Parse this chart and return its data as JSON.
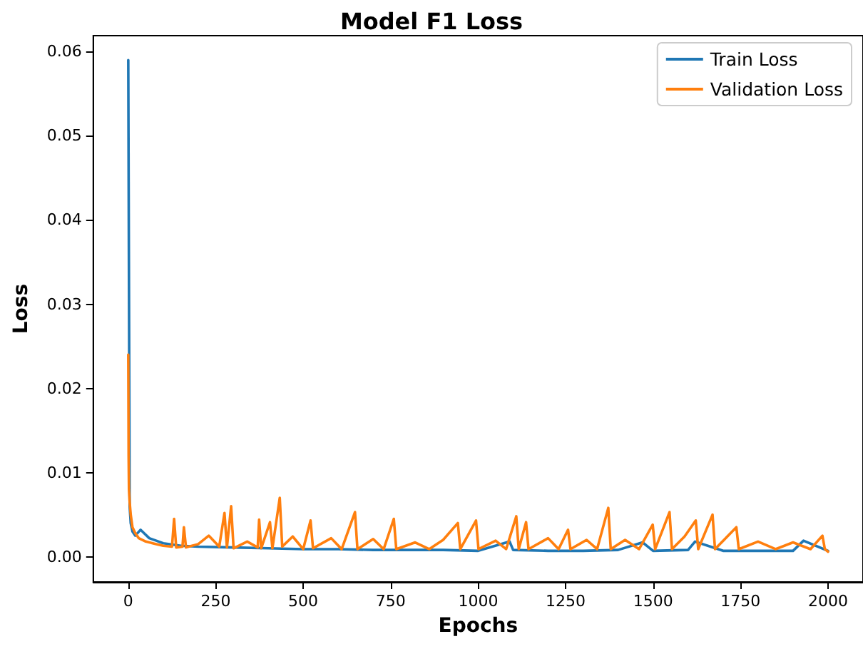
{
  "chart_data": {
    "type": "line",
    "title": "Model F1 Loss",
    "xlabel": "Epochs",
    "ylabel": "Loss",
    "xlim": [
      -100,
      2100
    ],
    "xticks": [
      0,
      250,
      500,
      750,
      1000,
      1250,
      1500,
      1750,
      2000
    ],
    "ylim": [
      -0.003,
      0.0619
    ],
    "yticks": [
      {
        "value": 0,
        "label": "0.00"
      },
      {
        "value": 0.01,
        "label": "0.01"
      },
      {
        "value": 0.02,
        "label": "0.02"
      },
      {
        "value": 0.03,
        "label": "0.03"
      },
      {
        "value": 0.04,
        "label": "0.04"
      },
      {
        "value": 0.05,
        "label": "0.05"
      },
      {
        "value": 0.06,
        "label": "0.06"
      }
    ],
    "grid": false,
    "legend": "top right",
    "marker": "none",
    "line_style": "solid",
    "series": [
      {
        "name": "Train Loss",
        "color": "#1f77b4",
        "x": [
          0,
          4,
          7,
          12,
          20,
          35,
          45,
          60,
          80,
          100,
          150,
          200,
          300,
          400,
          500,
          600,
          700,
          800,
          900,
          1000,
          1090,
          1100,
          1200,
          1300,
          1400,
          1470,
          1500,
          1600,
          1620,
          1700,
          1800,
          1900,
          1930,
          2000
        ],
        "values": [
          0.059,
          0.006,
          0.004,
          0.003,
          0.0025,
          0.0032,
          0.0028,
          0.0022,
          0.0019,
          0.0016,
          0.0013,
          0.0012,
          0.0011,
          0.001,
          0.0009,
          0.0009,
          0.0008,
          0.0008,
          0.0008,
          0.0007,
          0.0018,
          0.0008,
          0.0007,
          0.0007,
          0.0008,
          0.0017,
          0.0007,
          0.0008,
          0.0018,
          0.0007,
          0.0007,
          0.0007,
          0.0019,
          0.0007
        ]
      },
      {
        "name": "Validation Loss",
        "color": "#ff7f0e",
        "x": [
          0,
          1,
          2,
          4,
          7,
          12,
          20,
          30,
          50,
          80,
          100,
          125,
          131,
          137,
          155,
          159,
          165,
          200,
          230,
          260,
          275,
          282,
          294,
          301,
          340,
          370,
          374,
          380,
          405,
          412,
          433,
          440,
          470,
          500,
          521,
          528,
          580,
          610,
          648,
          655,
          700,
          730,
          759,
          766,
          820,
          860,
          900,
          942,
          949,
          994,
          1001,
          1050,
          1080,
          1109,
          1116,
          1137,
          1144,
          1200,
          1230,
          1257,
          1264,
          1310,
          1340,
          1372,
          1379,
          1420,
          1460,
          1499,
          1506,
          1547,
          1554,
          1590,
          1622,
          1629,
          1670,
          1677,
          1738,
          1745,
          1800,
          1850,
          1900,
          1950,
          1984,
          1991,
          2000
        ],
        "values": [
          0.024,
          0.012,
          0.008,
          0.0065,
          0.005,
          0.0035,
          0.0028,
          0.0022,
          0.0018,
          0.0015,
          0.0013,
          0.0012,
          0.0045,
          0.0011,
          0.0012,
          0.0035,
          0.0011,
          0.0015,
          0.0025,
          0.0012,
          0.0052,
          0.0011,
          0.006,
          0.001,
          0.0018,
          0.0011,
          0.0044,
          0.001,
          0.0041,
          0.001,
          0.007,
          0.0012,
          0.0024,
          0.0009,
          0.0043,
          0.001,
          0.0022,
          0.0009,
          0.0053,
          0.0009,
          0.0021,
          0.0009,
          0.0045,
          0.0009,
          0.0017,
          0.0009,
          0.002,
          0.004,
          0.0009,
          0.0043,
          0.0009,
          0.0019,
          0.0009,
          0.0048,
          0.0009,
          0.0041,
          0.0009,
          0.0022,
          0.0009,
          0.0032,
          0.0009,
          0.002,
          0.0009,
          0.0058,
          0.0009,
          0.002,
          0.0009,
          0.0038,
          0.0009,
          0.0053,
          0.0009,
          0.0024,
          0.0043,
          0.0009,
          0.005,
          0.0009,
          0.0035,
          0.0009,
          0.0018,
          0.0009,
          0.0017,
          0.0009,
          0.0025,
          0.0009,
          0.0006
        ]
      }
    ]
  }
}
